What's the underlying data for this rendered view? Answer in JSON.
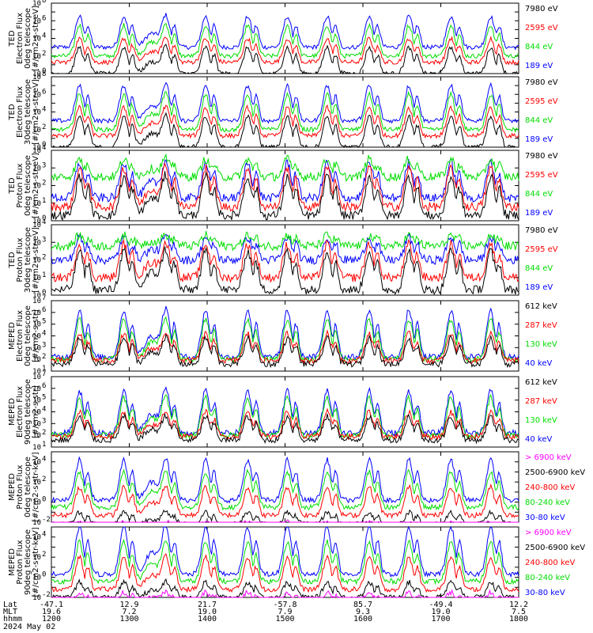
{
  "colors": {
    "blue": "#0000ff",
    "red": "#ff0000",
    "green": "#00dd00",
    "black": "#000000",
    "magenta": "#ff00ff"
  },
  "chart_data": {
    "type": "line",
    "y_scale": "log",
    "time_hhmm": [
      "1200",
      "1300",
      "1400",
      "1500",
      "1600",
      "1700",
      "1800"
    ],
    "panels": [
      {
        "ylabel": [
          "TED",
          "Electron Flux",
          "0deg telescope",
          "[#/cm2-s-str-eV]"
        ],
        "ytick_exponents": [
          0,
          2,
          4,
          6,
          8
        ],
        "ylim": [
          1,
          100000000
        ],
        "legend": [
          {
            "text": "7980 eV",
            "color": "#000000"
          },
          {
            "text": "2595 eV",
            "color": "#ff0000"
          },
          {
            "text": "844 eV",
            "color": "#00dd00"
          },
          {
            "text": "189 eV",
            "color": "#0000ff"
          }
        ],
        "base_levels": {
          "blue": 3.0,
          "green": 2.0,
          "red": 1.3,
          "black": 0.0
        },
        "peak_levels": {
          "blue": 6.5,
          "green": 5.5,
          "red": 4.0,
          "black": 3.0
        }
      },
      {
        "ylabel": [
          "TED",
          "Electron Flux",
          "30deg telescope",
          "[#/cm2-s-str-eV]"
        ],
        "ytick_exponents": [
          0,
          2,
          4,
          6,
          8
        ],
        "ylim": [
          1,
          100000000
        ],
        "legend": [
          {
            "text": "7980 eV",
            "color": "#000000"
          },
          {
            "text": "2595 eV",
            "color": "#ff0000"
          },
          {
            "text": "844 eV",
            "color": "#00dd00"
          },
          {
            "text": "189 eV",
            "color": "#0000ff"
          }
        ],
        "base_levels": {
          "blue": 3.0,
          "green": 2.0,
          "red": 1.3,
          "black": 0.0
        },
        "peak_levels": {
          "blue": 7.0,
          "green": 6.0,
          "red": 4.5,
          "black": 3.5
        }
      },
      {
        "ylabel": [
          "TED",
          "Proton Flux",
          "0deg telescope",
          "[#/cm2-s-str-eV]"
        ],
        "ytick_exponents": [
          0,
          1,
          2,
          3,
          4
        ],
        "ylim": [
          1,
          10000
        ],
        "legend": [
          {
            "text": "7980 eV",
            "color": "#000000"
          },
          {
            "text": "2595 eV",
            "color": "#ff0000"
          },
          {
            "text": "844 eV",
            "color": "#00dd00"
          },
          {
            "text": "189 eV",
            "color": "#0000ff"
          }
        ],
        "base_levels": {
          "blue": 1.3,
          "green": 2.5,
          "red": 0.8,
          "black": 0.3
        },
        "peak_levels": {
          "blue": 3.3,
          "green": 3.5,
          "red": 3.0,
          "black": 2.5
        }
      },
      {
        "ylabel": [
          "TED",
          "Proton Flux",
          "30deg telescope",
          "[#/cm2-s-str-eV]"
        ],
        "ytick_exponents": [
          0,
          1,
          2,
          3,
          4
        ],
        "ylim": [
          1,
          10000
        ],
        "legend": [
          {
            "text": "7980 eV",
            "color": "#000000"
          },
          {
            "text": "2595 eV",
            "color": "#ff0000"
          },
          {
            "text": "844 eV",
            "color": "#00dd00"
          },
          {
            "text": "189 eV",
            "color": "#0000ff"
          }
        ],
        "base_levels": {
          "blue": 2.0,
          "green": 2.8,
          "red": 1.0,
          "black": 0.3
        },
        "peak_levels": {
          "blue": 3.3,
          "green": 3.4,
          "red": 2.9,
          "black": 2.5
        }
      },
      {
        "ylabel": [
          "MEPED",
          "Electron Flux",
          "0deg telescope",
          "[#/cm2-s-str]"
        ],
        "ytick_exponents": [
          1,
          2,
          3,
          4,
          5,
          6,
          7
        ],
        "ylim": [
          10,
          10000000
        ],
        "legend": [
          {
            "text": "612 keV",
            "color": "#000000"
          },
          {
            "text": "287 keV",
            "color": "#ff0000"
          },
          {
            "text": "130 keV",
            "color": "#00dd00"
          },
          {
            "text": "40 keV",
            "color": "#0000ff"
          }
        ],
        "base_levels": {
          "blue": 2.2,
          "green": 2.0,
          "red": 1.9,
          "black": 1.6
        },
        "peak_levels": {
          "blue": 6.2,
          "green": 5.4,
          "red": 4.2,
          "black": 3.8
        }
      },
      {
        "ylabel": [
          "MEPED",
          "Electron Flux",
          "90deg telescope",
          "[#/cm2-s-str]"
        ],
        "ytick_exponents": [
          1,
          2,
          3,
          4,
          5,
          6,
          7
        ],
        "ylim": [
          10,
          10000000
        ],
        "legend": [
          {
            "text": "612 keV",
            "color": "#000000"
          },
          {
            "text": "287 keV",
            "color": "#ff0000"
          },
          {
            "text": "130 keV",
            "color": "#00dd00"
          },
          {
            "text": "40 keV",
            "color": "#0000ff"
          }
        ],
        "base_levels": {
          "blue": 2.2,
          "green": 2.0,
          "red": 1.9,
          "black": 1.6
        },
        "peak_levels": {
          "blue": 5.8,
          "green": 5.2,
          "red": 4.0,
          "black": 3.6
        }
      },
      {
        "ylabel": [
          "MEPED",
          "Proton Flux",
          "0deg telescope",
          "[#/cm2-s-str-keV]"
        ],
        "ytick_exponents": [
          -2,
          0,
          2,
          4
        ],
        "ylim": [
          0.01,
          100000
        ],
        "legend": [
          {
            "text": "> 6900 keV",
            "color": "#ff00ff"
          },
          {
            "text": "2500-6900 keV",
            "color": "#000000"
          },
          {
            "text": "240-800 keV",
            "color": "#ff0000"
          },
          {
            "text": "80-240 keV",
            "color": "#00dd00"
          },
          {
            "text": "30-80 keV",
            "color": "#0000ff"
          }
        ],
        "base_levels": {
          "blue": 0.2,
          "green": -0.5,
          "red": -1.3,
          "black": -2.2,
          "magenta": -2.5
        },
        "peak_levels": {
          "blue": 4.2,
          "green": 3.0,
          "red": 1.5,
          "black": -1.0,
          "magenta": -2.0
        }
      },
      {
        "ylabel": [
          "MEPED",
          "Proton Flux",
          "90deg telescope",
          "[#/cm2-s-str-keV]"
        ],
        "ytick_exponents": [
          -2,
          0,
          2,
          4
        ],
        "ylim": [
          0.01,
          100000
        ],
        "legend": [
          {
            "text": "> 6900 keV",
            "color": "#ff00ff"
          },
          {
            "text": "2500-6900 keV",
            "color": "#000000"
          },
          {
            "text": "240-800 keV",
            "color": "#ff0000"
          },
          {
            "text": "80-240 keV",
            "color": "#00dd00"
          },
          {
            "text": "30-80 keV",
            "color": "#0000ff"
          }
        ],
        "base_levels": {
          "blue": 0.3,
          "green": -0.4,
          "red": -1.2,
          "black": -2.0,
          "magenta": -2.5
        },
        "peak_levels": {
          "blue": 5.0,
          "green": 3.5,
          "red": 2.0,
          "black": -0.5,
          "magenta": -1.5
        }
      }
    ],
    "bottom_axis": {
      "row_labels": [
        "Lat",
        "MLT",
        "hhmm",
        "2024 May 02"
      ],
      "columns": [
        {
          "lat": "-47.1",
          "mlt": "19.6",
          "hhmm": "1200"
        },
        {
          "lat": "12.9",
          "mlt": "7.2",
          "hhmm": "1300"
        },
        {
          "lat": "21.7",
          "mlt": "19.0",
          "hhmm": "1400"
        },
        {
          "lat": "-57.8",
          "mlt": "7.9",
          "hhmm": "1500"
        },
        {
          "lat": "85.7",
          "mlt": "9.3",
          "hhmm": "1600"
        },
        {
          "lat": "-49.4",
          "mlt": "19.0",
          "hhmm": "1700"
        },
        {
          "lat": "12.2",
          "mlt": "7.5",
          "hhmm": "1800"
        }
      ]
    }
  }
}
